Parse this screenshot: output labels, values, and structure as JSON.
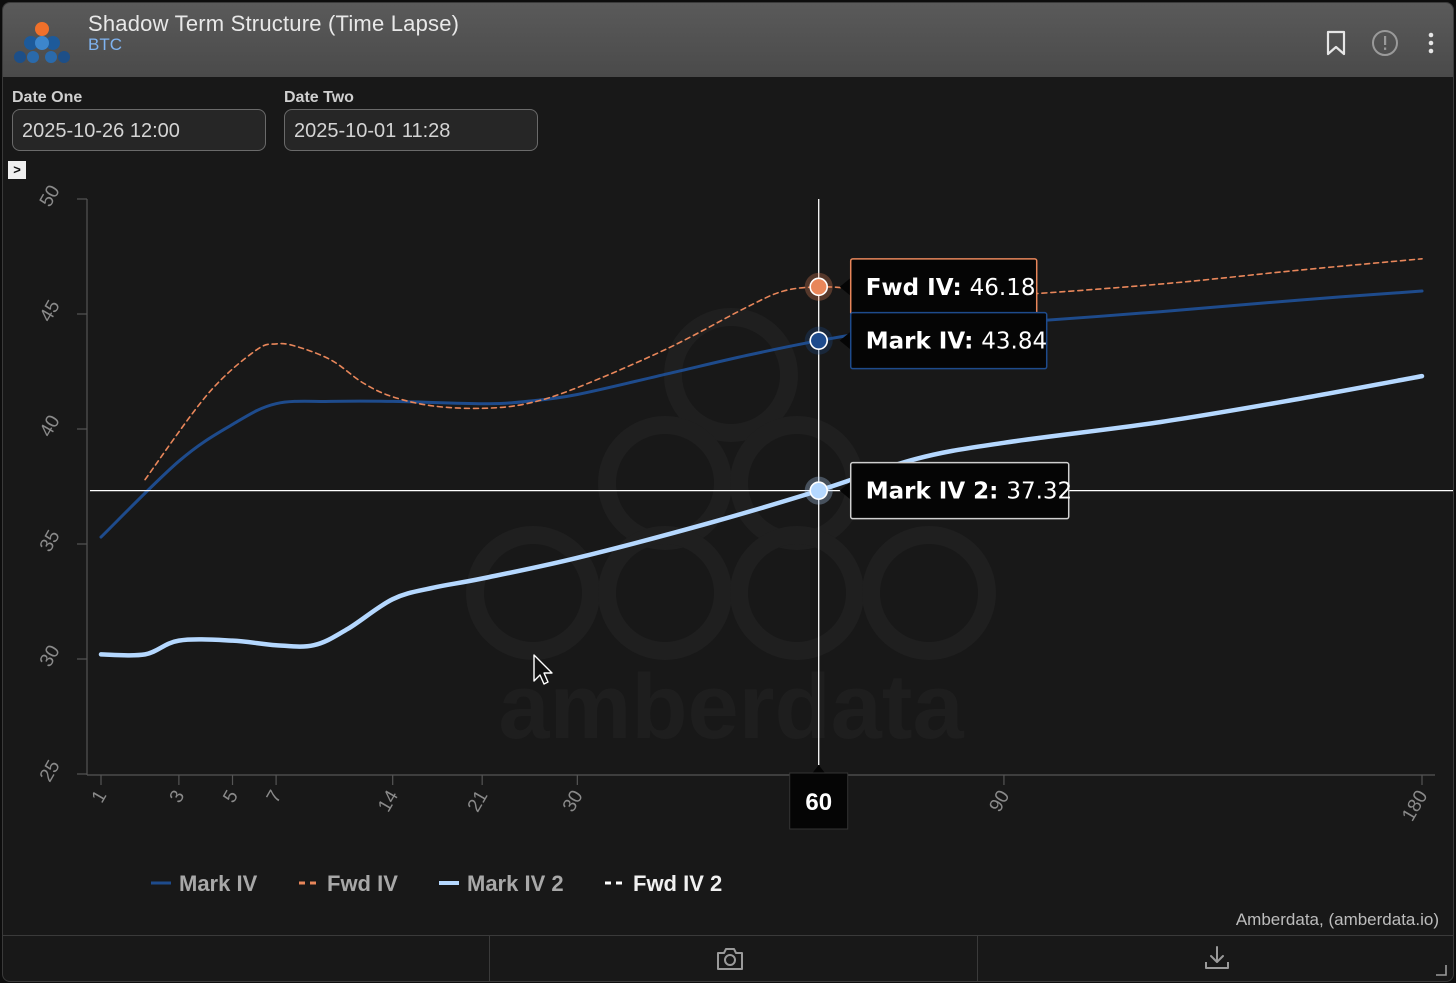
{
  "window": {
    "title": "Shadow Term Structure (Time Lapse)",
    "subtitle": "BTC",
    "icons": [
      "bookmark-icon",
      "info-icon",
      "more-vertical-icon"
    ]
  },
  "controls": {
    "date_one": {
      "label": "Date One",
      "value": "2025-10-26 12:00"
    },
    "date_two": {
      "label": "Date Two",
      "value": "2025-10-01 11:28"
    },
    "toggle": ">"
  },
  "watermark": "amberdata",
  "chart_data": {
    "type": "line",
    "x_ticks": [
      1,
      3,
      5,
      7,
      14,
      21,
      30,
      90,
      180
    ],
    "x_tick_labels": [
      "1",
      "3",
      "5",
      "7",
      "14",
      "21",
      "30",
      "90",
      "180"
    ],
    "y_ticks": [
      25,
      30,
      35,
      40,
      45,
      50
    ],
    "ylim": [
      25,
      50
    ],
    "xlim": [
      1,
      180
    ],
    "x_scale": "sqrt",
    "series": [
      {
        "name": "Mark IV",
        "style": "solid",
        "color": "#1e4b8c",
        "points": [
          [
            1,
            35.3
          ],
          [
            3,
            38.6
          ],
          [
            5,
            40.2
          ],
          [
            7,
            41.1
          ],
          [
            10,
            41.2
          ],
          [
            14,
            41.2
          ],
          [
            21,
            41.1
          ],
          [
            25,
            41.2
          ],
          [
            30,
            41.5
          ],
          [
            40,
            42.4
          ],
          [
            50,
            43.2
          ],
          [
            60,
            43.84
          ],
          [
            70,
            44.3
          ],
          [
            80,
            44.5
          ],
          [
            90,
            44.6
          ],
          [
            120,
            45.1
          ],
          [
            150,
            45.6
          ],
          [
            180,
            46.0
          ]
        ]
      },
      {
        "name": "Fwd IV",
        "style": "dashed",
        "color": "#e8865a",
        "points": [
          [
            2,
            37.8
          ],
          [
            4,
            41.5
          ],
          [
            6,
            43.4
          ],
          [
            7,
            43.7
          ],
          [
            8,
            43.6
          ],
          [
            10,
            43.0
          ],
          [
            12,
            42.0
          ],
          [
            14,
            41.4
          ],
          [
            17,
            41.0
          ],
          [
            21,
            40.9
          ],
          [
            25,
            41.1
          ],
          [
            30,
            41.8
          ],
          [
            40,
            43.5
          ],
          [
            50,
            45.3
          ],
          [
            55,
            46.0
          ],
          [
            60,
            46.18
          ],
          [
            65,
            46.1
          ],
          [
            70,
            45.9
          ],
          [
            80,
            45.8
          ],
          [
            90,
            45.8
          ],
          [
            120,
            46.3
          ],
          [
            150,
            46.9
          ],
          [
            180,
            47.4
          ]
        ]
      },
      {
        "name": "Mark IV 2",
        "style": "solid",
        "color": "#b5d8ff",
        "points": [
          [
            1,
            30.2
          ],
          [
            2,
            30.2
          ],
          [
            3,
            30.8
          ],
          [
            5,
            30.8
          ],
          [
            7,
            30.6
          ],
          [
            9,
            30.6
          ],
          [
            11,
            31.3
          ],
          [
            14,
            32.6
          ],
          [
            17,
            33.1
          ],
          [
            21,
            33.5
          ],
          [
            30,
            34.4
          ],
          [
            45,
            35.9
          ],
          [
            60,
            37.32
          ],
          [
            75,
            38.7
          ],
          [
            90,
            39.4
          ],
          [
            120,
            40.3
          ],
          [
            150,
            41.3
          ],
          [
            180,
            42.3
          ]
        ]
      },
      {
        "name": "Fwd IV 2",
        "style": "dashed",
        "color": "#ffffff",
        "points": []
      }
    ],
    "crosshair": {
      "x": 60,
      "y": 37.32,
      "x_label": "60"
    },
    "tooltips": [
      {
        "series": "Fwd IV",
        "label": "Fwd IV:",
        "value": "46.18",
        "y": 46.18
      },
      {
        "series": "Mark IV",
        "label": "Mark IV:",
        "value": "43.84",
        "y": 43.84
      },
      {
        "series": "Mark IV 2",
        "label": "Mark IV 2:",
        "value": "37.32",
        "y": 37.32
      }
    ],
    "legend": [
      {
        "label": "Mark IV",
        "style": "solid",
        "color": "#1e4b8c",
        "text_color": "#a8a8a8"
      },
      {
        "label": "Fwd IV",
        "style": "dashed",
        "color": "#e8865a",
        "text_color": "#a8a8a8"
      },
      {
        "label": "Mark IV 2",
        "style": "solid",
        "color": "#b5d8ff",
        "text_color": "#a8a8a8"
      },
      {
        "label": "Fwd IV 2",
        "style": "dashed",
        "color": "#ffffff",
        "text_color": "#f0f0f0"
      }
    ],
    "legend_position": "bottom-left",
    "grid": false,
    "credit": "Amberdata, (amberdata.io)"
  },
  "footer": {
    "icons": [
      "camera-icon",
      "download-icon"
    ]
  }
}
